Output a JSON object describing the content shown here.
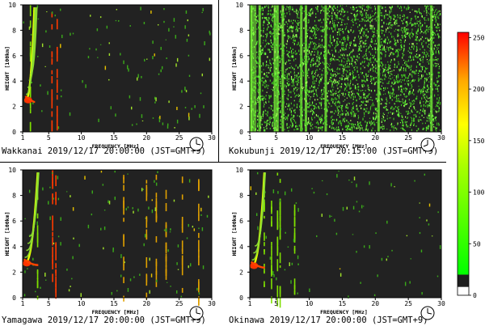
{
  "chart_data": [
    {
      "type": "heatmap",
      "station": "Wakkanai",
      "caption": "Wakkanai 2019/12/17 20:00:00 (JST=GMT+9)",
      "xlabel": "FREQUENCY [MHz]",
      "ylabel": "HEIGHT [100km]",
      "xlim": [
        1,
        30
      ],
      "ylim": [
        0,
        10
      ],
      "xticks": [
        1,
        5,
        10,
        15,
        20,
        25,
        30
      ],
      "yticks": [
        0,
        2,
        4,
        6,
        8,
        10
      ],
      "echo_lines_mhz": [
        2.2,
        5.5,
        6.3
      ],
      "trace": {
        "base_height": 2.4,
        "top_height": 9.8,
        "f_start": 1.3,
        "f_end": 2.8,
        "layers": 5
      },
      "noise_density": 0.18
    },
    {
      "type": "heatmap",
      "station": "Kokubunji",
      "caption": "Kokubunji 2019/12/17 20:15:00 (JST=GMT+9)",
      "xlabel": "FREQUENCY [MHz]",
      "ylabel": "HEIGHT [100km]",
      "xlim": [
        1,
        30
      ],
      "ylim": [
        0,
        10
      ],
      "xticks": [
        1,
        5,
        10,
        15,
        20,
        25,
        30
      ],
      "yticks": [
        0,
        2,
        4,
        6,
        8,
        10
      ],
      "echo_lines_mhz": [
        1.2,
        2.5,
        4.8,
        5.2,
        6.0,
        8.8,
        9.5,
        12.5,
        20.5,
        28.5
      ],
      "trace": null,
      "noise_density": 0.72
    },
    {
      "type": "heatmap",
      "station": "Yamagawa",
      "caption": "Yamagawa 2019/12/17 20:00:00 (JST=GMT+9)",
      "xlabel": "FREQUENCY [MHz]",
      "ylabel": "HEIGHT [100km]",
      "xlim": [
        1,
        30
      ],
      "ylim": [
        0,
        10
      ],
      "xticks": [
        1,
        5,
        10,
        15,
        20,
        25,
        30
      ],
      "yticks": [
        0,
        2,
        4,
        6,
        8,
        10
      ],
      "echo_lines_mhz": [
        3.3,
        5.6,
        6.1,
        16.5,
        20.0,
        21.5,
        23.0,
        25.5,
        28.0
      ],
      "trace": {
        "base_height": 2.6,
        "top_height": 9.8,
        "f_start": 1.1,
        "f_end": 3.3,
        "layers": 5
      },
      "noise_density": 0.16
    },
    {
      "type": "heatmap",
      "station": "Okinawa",
      "caption": "Okinawa 2019/12/17 20:00:00 (JST=GMT+9)",
      "xlabel": "FREQUENCY [MHz]",
      "ylabel": "HEIGHT [100km]",
      "xlim": [
        1,
        30
      ],
      "ylim": [
        0,
        10
      ],
      "xticks": [
        1,
        5,
        10,
        15,
        20,
        25,
        30
      ],
      "yticks": [
        0,
        2,
        4,
        6,
        8,
        10
      ],
      "echo_lines_mhz": [
        3.2,
        4.3,
        5.2,
        5.6,
        7.8
      ],
      "trace": {
        "base_height": 2.4,
        "top_height": 9.8,
        "f_start": 1.1,
        "f_end": 3.2,
        "layers": 4
      },
      "noise_density": 0.13
    }
  ],
  "colorbar": {
    "min": 0,
    "max": 255,
    "ticks": [
      0,
      50,
      100,
      150,
      200,
      250
    ],
    "colors": {
      "low": "#1e1e1e",
      "green": "#00ff00",
      "yellow": "#ffff00",
      "red": "#ff0000"
    }
  }
}
